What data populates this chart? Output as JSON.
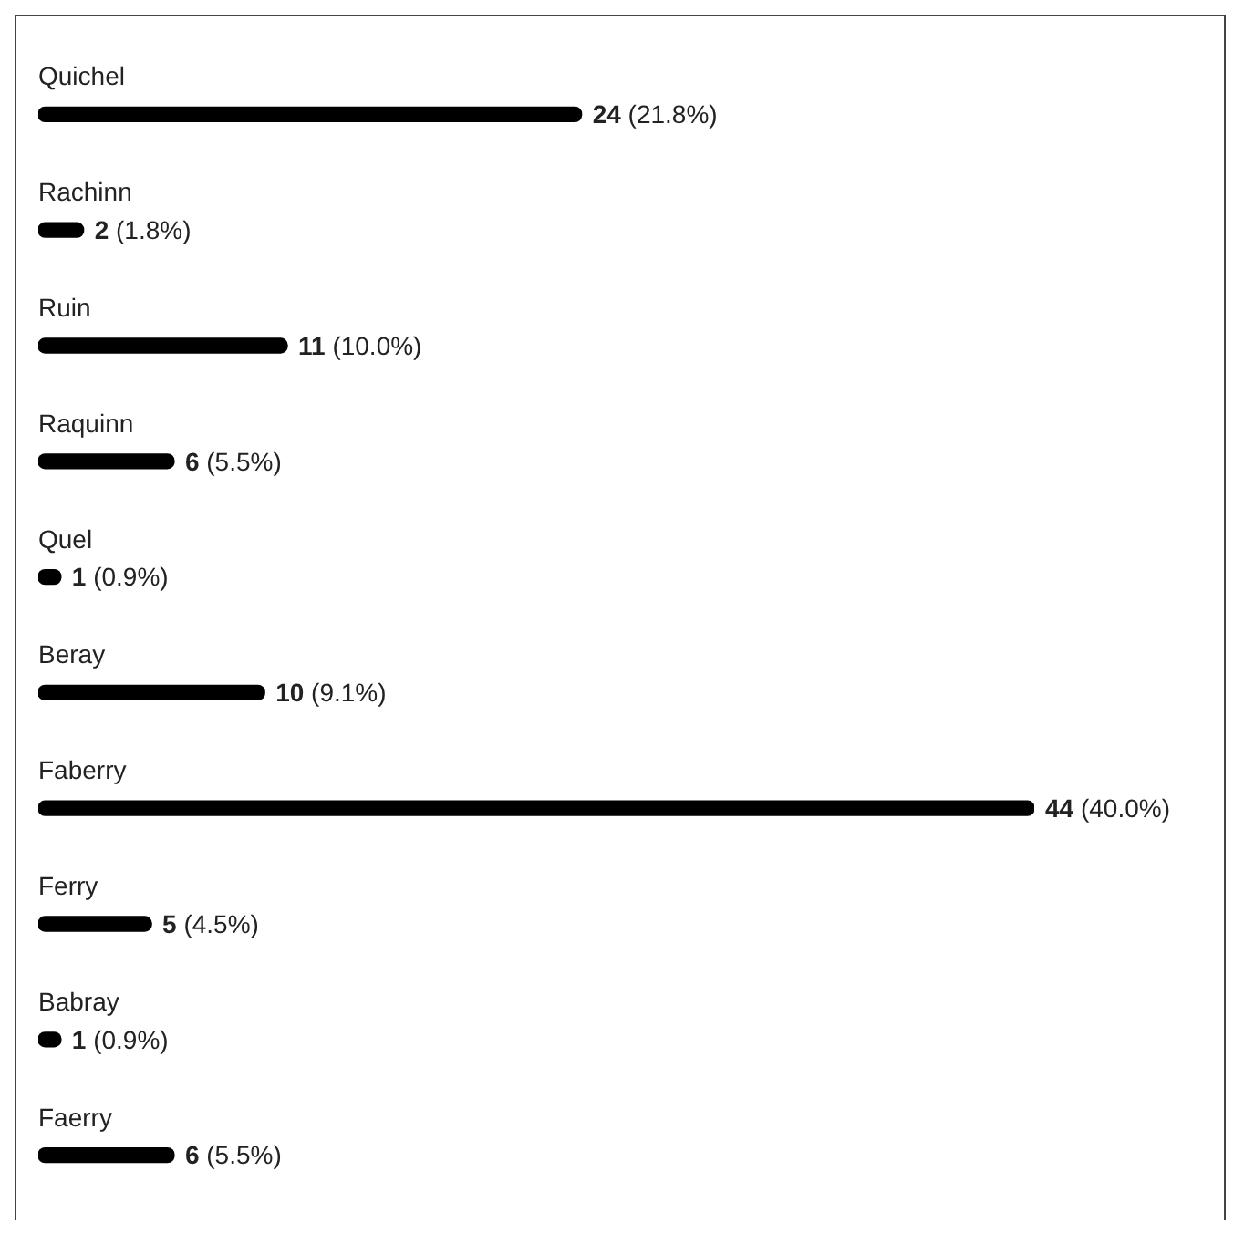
{
  "chart_data": {
    "type": "bar",
    "orientation": "horizontal",
    "categories": [
      "Quichel",
      "Rachinn",
      "Ruin",
      "Raquinn",
      "Quel",
      "Beray",
      "Faberry",
      "Ferry",
      "Babray",
      "Faerry"
    ],
    "values": [
      24,
      2,
      11,
      6,
      1,
      10,
      44,
      5,
      1,
      6
    ],
    "value_labels": [
      "24 (21.8%)",
      "2 (1.8%)",
      "11 (10.0%)",
      "6 (5.5%)",
      "1 (0.9%)",
      "10 (9.1%)",
      "44 (40.0%)",
      "5 (4.5%)",
      "1 (0.9%)",
      "6 (5.5%)"
    ],
    "color": "#000000"
  }
}
